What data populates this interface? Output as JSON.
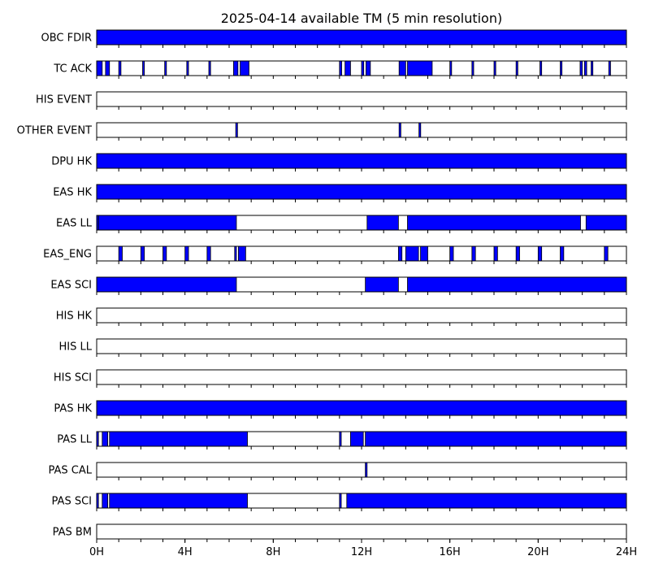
{
  "chart_data": {
    "type": "timeline",
    "title": "2025-04-14 available TM (5 min resolution)",
    "x_unit": "hours",
    "xlim": [
      0,
      24
    ],
    "x_ticks": [
      {
        "value": 0,
        "label": "0H"
      },
      {
        "value": 4,
        "label": "4H"
      },
      {
        "value": 8,
        "label": "8H"
      },
      {
        "value": 12,
        "label": "12H"
      },
      {
        "value": 16,
        "label": "16H"
      },
      {
        "value": 20,
        "label": "20H"
      },
      {
        "value": 24,
        "label": "24H"
      }
    ],
    "minor_tick_step_hours": 1,
    "fill_color": "#0000ff",
    "rows": [
      {
        "name": "OBC FDIR",
        "intervals": [
          [
            0,
            24
          ]
        ]
      },
      {
        "name": "TC ACK",
        "intervals": [
          [
            0,
            0.25
          ],
          [
            0.4,
            0.58
          ],
          [
            1.0,
            1.1
          ],
          [
            2.08,
            2.16
          ],
          [
            3.08,
            3.16
          ],
          [
            4.08,
            4.16
          ],
          [
            5.08,
            5.16
          ],
          [
            6.2,
            6.4
          ],
          [
            6.5,
            6.9
          ],
          [
            11.0,
            11.1
          ],
          [
            11.25,
            11.5
          ],
          [
            12.0,
            12.1
          ],
          [
            12.2,
            12.4
          ],
          [
            13.7,
            14.0
          ],
          [
            14.08,
            15.2
          ],
          [
            16.0,
            16.08
          ],
          [
            17.0,
            17.08
          ],
          [
            18.0,
            18.08
          ],
          [
            19.0,
            19.08
          ],
          [
            20.08,
            20.16
          ],
          [
            21.0,
            21.08
          ],
          [
            21.9,
            22.0
          ],
          [
            22.1,
            22.2
          ],
          [
            22.4,
            22.48
          ],
          [
            23.2,
            23.28
          ]
        ]
      },
      {
        "name": "HIS EVENT",
        "intervals": []
      },
      {
        "name": "OTHER EVENT",
        "intervals": [
          [
            6.3,
            6.38
          ],
          [
            13.7,
            13.78
          ],
          [
            14.6,
            14.68
          ]
        ]
      },
      {
        "name": "DPU HK",
        "intervals": [
          [
            0,
            24
          ]
        ]
      },
      {
        "name": "EAS HK",
        "intervals": [
          [
            0,
            24
          ]
        ]
      },
      {
        "name": "EAS LL",
        "intervals": [
          [
            0,
            0.05
          ],
          [
            0.08,
            6.33
          ],
          [
            12.25,
            13.67
          ],
          [
            14.08,
            21.92
          ],
          [
            22.17,
            24
          ]
        ]
      },
      {
        "name": "EAS_ENG",
        "intervals": [
          [
            1.0,
            1.16
          ],
          [
            2.0,
            2.16
          ],
          [
            3.0,
            3.16
          ],
          [
            4.0,
            4.16
          ],
          [
            5.0,
            5.16
          ],
          [
            6.25,
            6.33
          ],
          [
            6.42,
            6.75
          ],
          [
            13.67,
            13.83
          ],
          [
            14.0,
            14.58
          ],
          [
            14.67,
            15.0
          ],
          [
            16.0,
            16.16
          ],
          [
            17.0,
            17.16
          ],
          [
            18.0,
            18.16
          ],
          [
            19.0,
            19.16
          ],
          [
            20.0,
            20.16
          ],
          [
            21.0,
            21.16
          ],
          [
            23.0,
            23.16
          ]
        ]
      },
      {
        "name": "EAS SCI",
        "intervals": [
          [
            0,
            6.33
          ],
          [
            12.17,
            13.67
          ],
          [
            14.08,
            24
          ]
        ]
      },
      {
        "name": "HIS HK",
        "intervals": []
      },
      {
        "name": "HIS LL",
        "intervals": []
      },
      {
        "name": "HIS SCI",
        "intervals": []
      },
      {
        "name": "PAS HK",
        "intervals": [
          [
            0,
            24
          ]
        ]
      },
      {
        "name": "PAS LL",
        "intervals": [
          [
            0,
            0.08
          ],
          [
            0.25,
            0.5
          ],
          [
            0.58,
            6.83
          ],
          [
            11.0,
            11.08
          ],
          [
            11.5,
            12.08
          ],
          [
            12.17,
            24
          ]
        ]
      },
      {
        "name": "PAS CAL",
        "intervals": [
          [
            12.17,
            12.25
          ]
        ]
      },
      {
        "name": "PAS SCI",
        "intervals": [
          [
            0,
            0.08
          ],
          [
            0.25,
            0.5
          ],
          [
            0.58,
            6.83
          ],
          [
            11.0,
            11.08
          ],
          [
            11.33,
            24
          ]
        ]
      },
      {
        "name": "PAS BM",
        "intervals": []
      }
    ]
  }
}
